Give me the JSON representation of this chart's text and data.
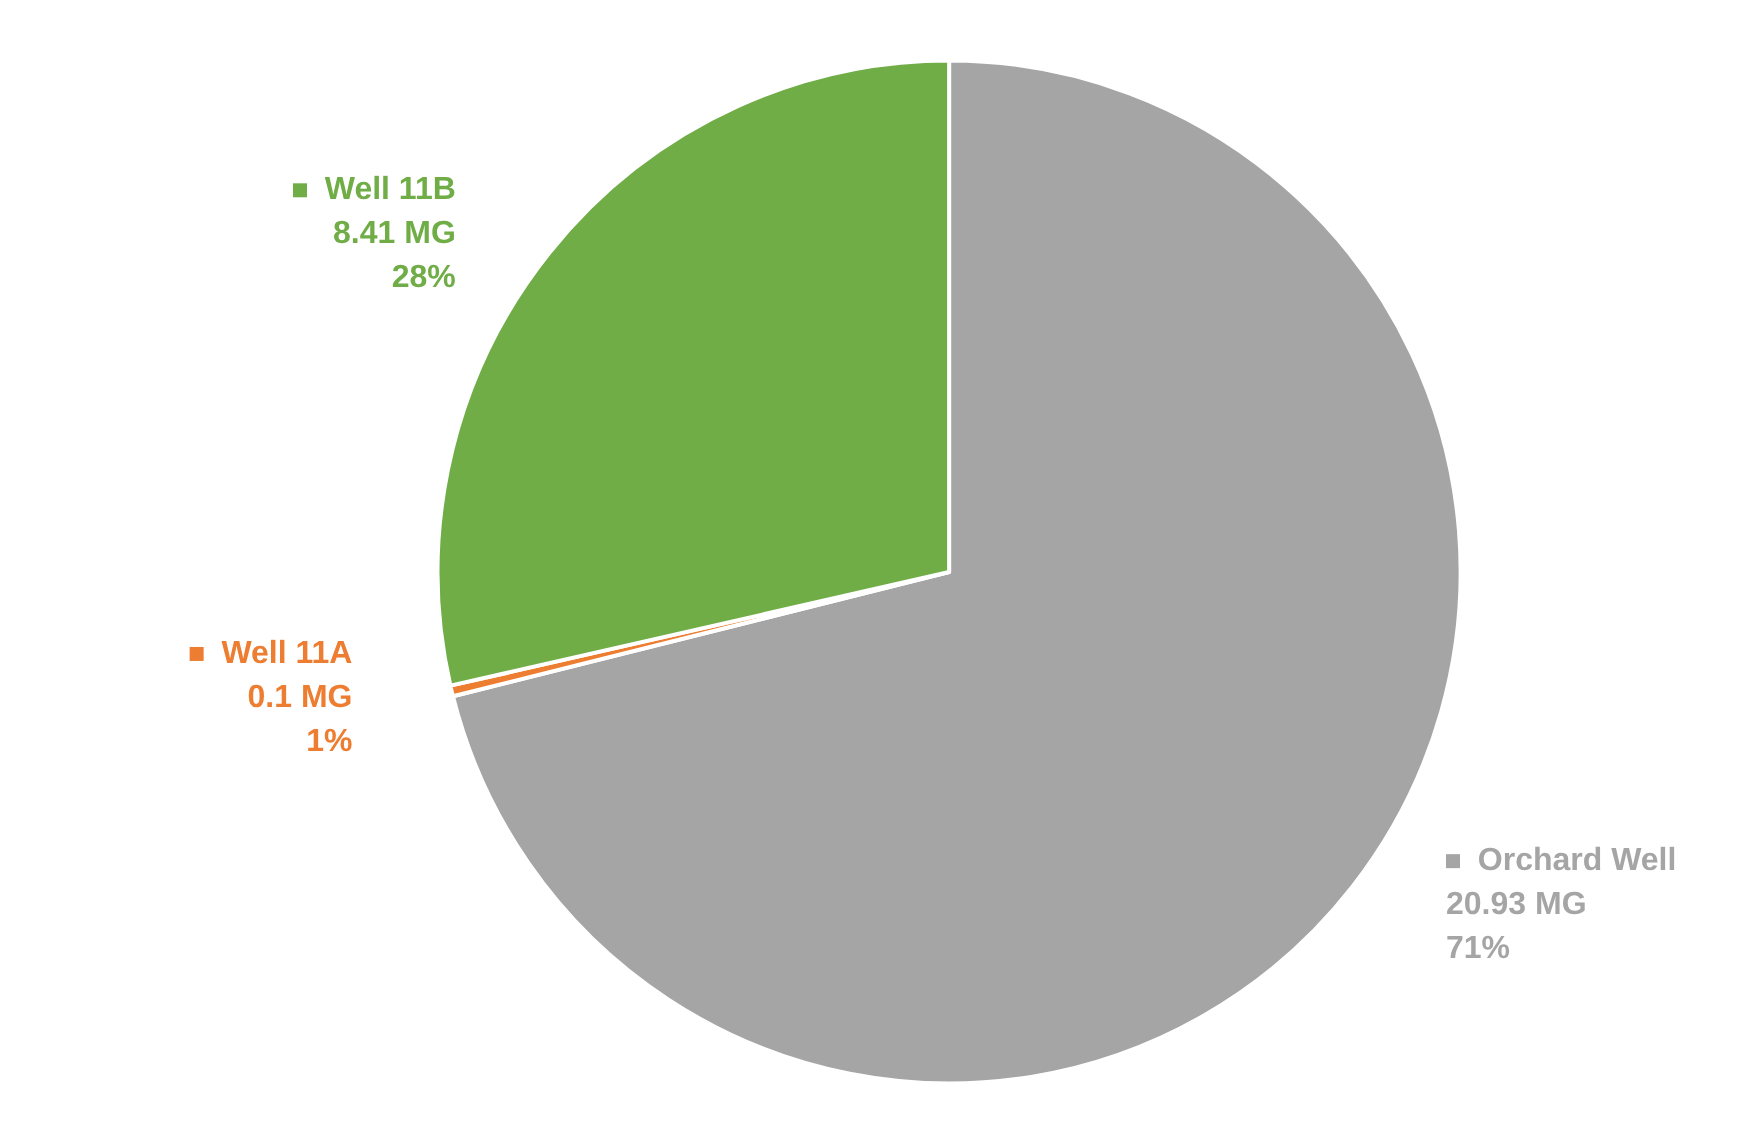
{
  "chart_data": {
    "type": "pie",
    "categories": [
      "Orchard Well",
      "Well 11A",
      "Well 11B"
    ],
    "values": [
      20.93,
      0.1,
      8.41
    ],
    "colors": [
      "#a5a5a5",
      "#ed7d31",
      "#70ad47"
    ],
    "legend": "left",
    "value_labels": [
      "20.93 MG\n71%",
      "0.1 MG\n1%",
      "8.41 MG\n28%"
    ]
  }
}
